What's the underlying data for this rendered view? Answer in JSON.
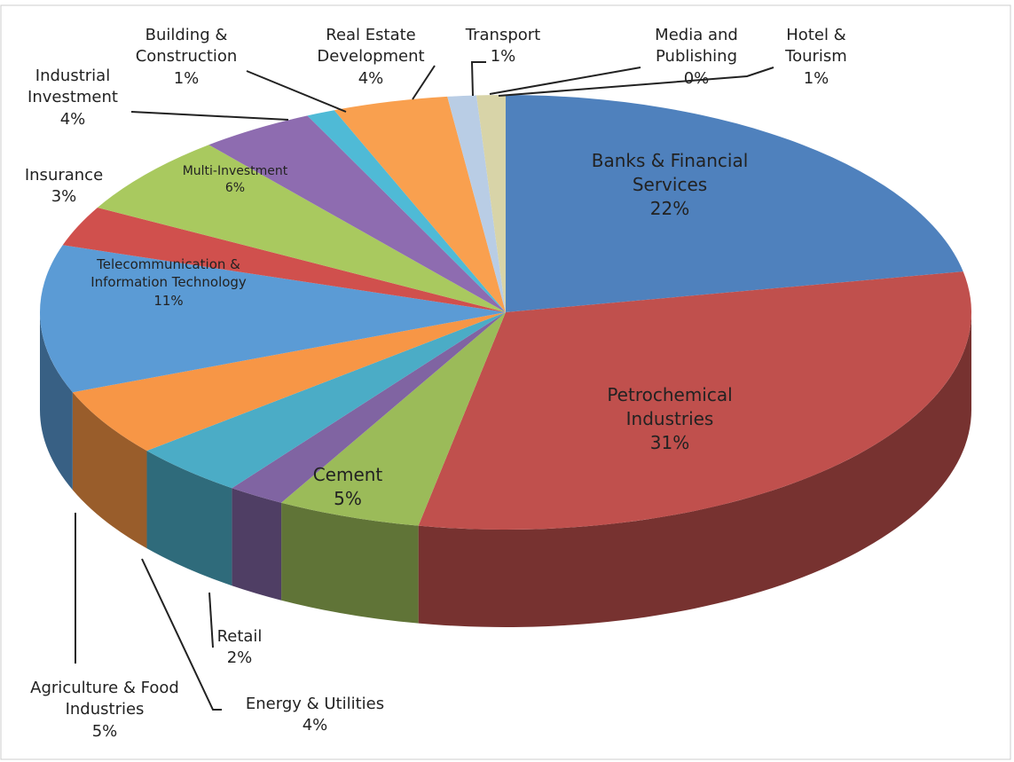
{
  "chart_data": {
    "type": "pie",
    "categories": [
      "Banks & Financial Services",
      "Petrochemical Industries",
      "Cement",
      "Retail",
      "Energy & Utilities",
      "Agriculture & Food Industries",
      "Telecommunication & Information Technology",
      "Insurance",
      "Multi-Investment",
      "Industrial Investment",
      "Building & Construction",
      "Real Estate Development",
      "Transport",
      "Media and Publishing",
      "Hotel & Tourism"
    ],
    "values": [
      22,
      31,
      5,
      2,
      4,
      5,
      11,
      3,
      6,
      4,
      1,
      4,
      1,
      0,
      1
    ],
    "value_labels": [
      "22%",
      "31%",
      "5%",
      "2%",
      "4%",
      "5%",
      "11%",
      "3%",
      "6%",
      "4%",
      "1%",
      "4%",
      "1%",
      "0%",
      "1%"
    ],
    "colors": [
      "#4f81bd",
      "#c0504d",
      "#9bbb59",
      "#8064a2",
      "#4bacc6",
      "#f79646",
      "#5b9bd5",
      "#d0504d",
      "#a9c95f",
      "#8e6cb0",
      "#4fbad6",
      "#f9a04f",
      "#b9cde5",
      "#e6b9b8",
      "#d8d4a8"
    ]
  }
}
